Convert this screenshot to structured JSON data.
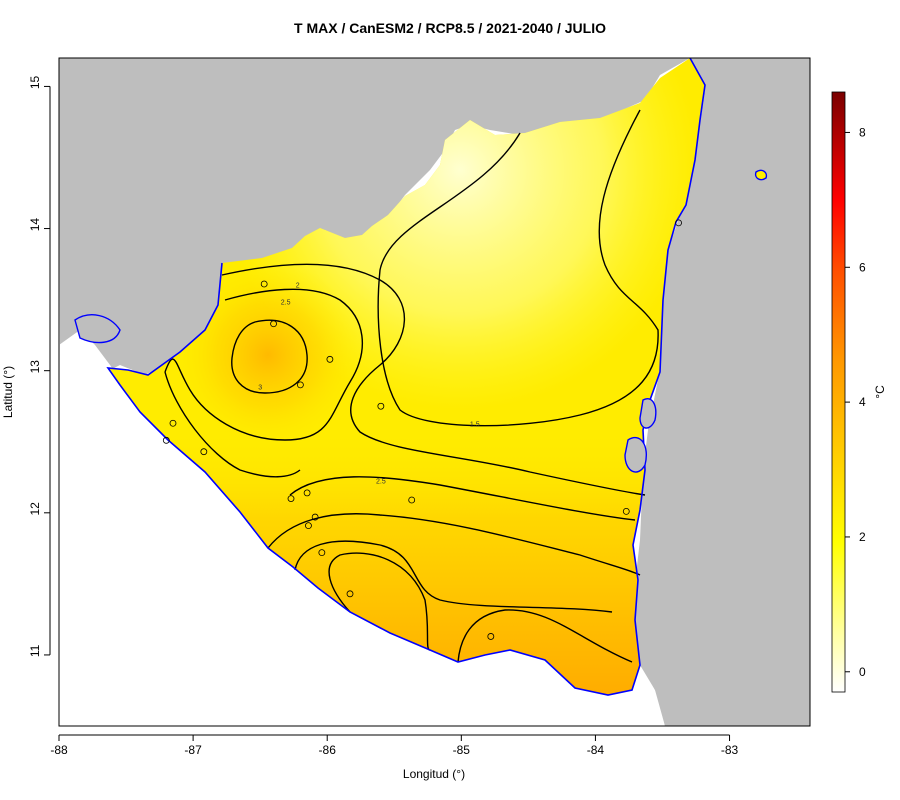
{
  "title": "T MAX / CanESM2 / RCP8.5 / 2021-2040 / JULIO",
  "axes": {
    "xlabel": "Longitud (°)",
    "ylabel": "Latitud (°)",
    "x_ticks": [
      "-88",
      "-87",
      "-86",
      "-85",
      "-84",
      "-83"
    ],
    "y_ticks": [
      "11",
      "12",
      "13",
      "14",
      "15"
    ],
    "xlim": [
      -88,
      -82.4
    ],
    "ylim": [
      10.5,
      15.2
    ]
  },
  "colorbar": {
    "unit_label": "°C",
    "ticks": [
      "0",
      "2",
      "4",
      "6",
      "8"
    ],
    "range": [
      -0.3,
      8.6
    ],
    "colors": [
      "#ffffff",
      "#ffff40",
      "#ffcc00",
      "#ff9900",
      "#ff5500",
      "#ff0000",
      "#cc0000",
      "#880000"
    ]
  },
  "colors": {
    "land_outside": "#bebebe",
    "coastline": "#0000ff",
    "contour": "#000000",
    "panel_border": "#000000"
  },
  "chart_data": {
    "type": "contour-map",
    "title": "T MAX / CanESM2 / RCP8.5 / 2021-2040 / JULIO",
    "xlabel": "Longitud (°)",
    "ylabel": "Latitud (°)",
    "contour_levels": [
      1.5,
      2,
      2.5,
      3
    ],
    "contour_labels": [
      {
        "text": "1.5",
        "lon": -84.9,
        "lat": 12.62
      },
      {
        "text": "2",
        "lon": -86.22,
        "lat": 13.6
      },
      {
        "text": "2.5",
        "lon": -86.31,
        "lat": 13.48
      },
      {
        "text": "3",
        "lon": -86.5,
        "lat": 12.88
      },
      {
        "text": "2.5",
        "lon": -85.6,
        "lat": 12.22
      }
    ],
    "stations": [
      {
        "lon": -86.47,
        "lat": 13.61
      },
      {
        "lon": -86.4,
        "lat": 13.33
      },
      {
        "lon": -85.98,
        "lat": 13.08
      },
      {
        "lon": -86.2,
        "lat": 12.9
      },
      {
        "lon": -85.6,
        "lat": 12.75
      },
      {
        "lon": -87.15,
        "lat": 12.63
      },
      {
        "lon": -87.2,
        "lat": 12.51
      },
      {
        "lon": -86.92,
        "lat": 12.43
      },
      {
        "lon": -86.27,
        "lat": 12.1
      },
      {
        "lon": -86.15,
        "lat": 12.14
      },
      {
        "lon": -85.37,
        "lat": 12.09
      },
      {
        "lon": -86.09,
        "lat": 11.97
      },
      {
        "lon": -86.14,
        "lat": 11.91
      },
      {
        "lon": -86.04,
        "lat": 11.72
      },
      {
        "lon": -85.83,
        "lat": 11.43
      },
      {
        "lon": -84.78,
        "lat": 11.13
      },
      {
        "lon": -83.77,
        "lat": 12.01
      },
      {
        "lon": -83.38,
        "lat": 14.04
      }
    ]
  }
}
